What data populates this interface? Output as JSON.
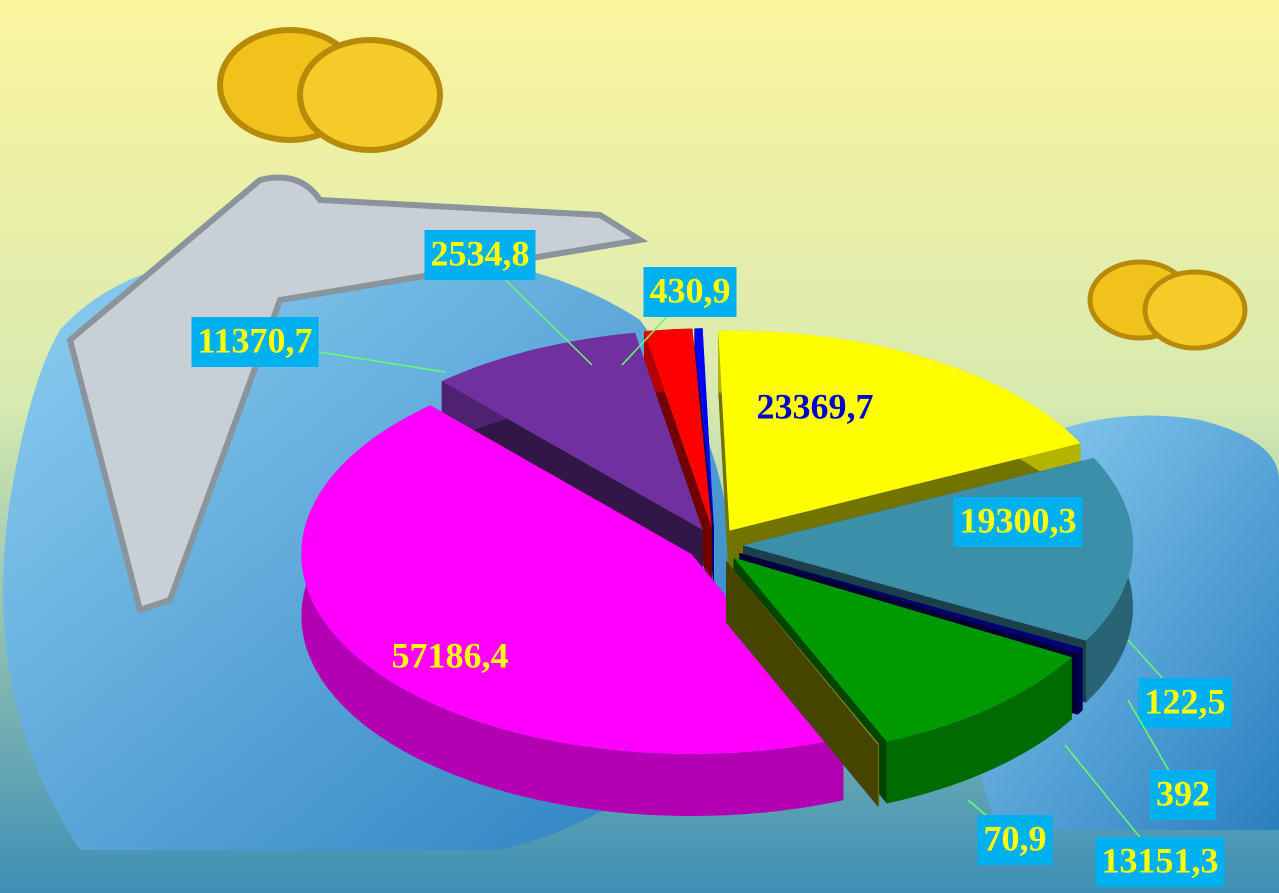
{
  "chart_data": {
    "type": "pie3d",
    "values": [
      2534.8,
      430.9,
      23369.7,
      19300.3,
      122.5,
      392,
      13151.3,
      70.9,
      57186.4,
      11370.7
    ],
    "value_labels": [
      "2534,8",
      "430,9",
      "23369,7",
      "19300,3",
      "122,5",
      "392",
      "13151,3",
      "70,9",
      "57186,4",
      "11370,7"
    ],
    "colors": [
      "#ff0000",
      "#0000ff",
      "#ffff00",
      "#3b8fa8",
      "#000080",
      "#00007a",
      "#009900",
      "#999900",
      "#ff00ff",
      "#7030a0"
    ]
  }
}
